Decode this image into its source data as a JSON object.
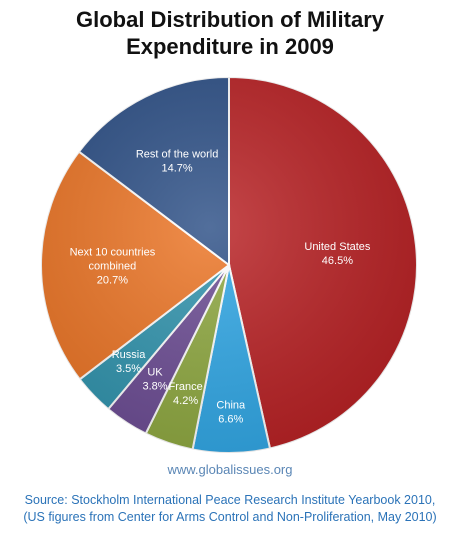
{
  "chart_data": {
    "type": "pie",
    "title_line1": "Global Distribution of Military",
    "title_line2": "Expenditure in 2009",
    "slices": [
      {
        "label": "United States",
        "value": 46.5,
        "value_text": "46.5%",
        "color": "#b81f22"
      },
      {
        "label": "China",
        "value": 6.6,
        "value_text": "6.6%",
        "color": "#2fa7e6"
      },
      {
        "label": "France",
        "value": 4.2,
        "value_text": "4.2%",
        "color": "#8ea83f"
      },
      {
        "label": "UK",
        "value": 3.8,
        "value_text": "3.8%",
        "color": "#6b4b93"
      },
      {
        "label": "Russia",
        "value": 3.5,
        "value_text": "3.5%",
        "color": "#2f93ad"
      },
      {
        "label": "Next 10 countries combined",
        "label_lines": [
          "Next 10 countries",
          "combined"
        ],
        "value": 20.7,
        "value_text": "20.7%",
        "color": "#ec7424"
      },
      {
        "label": "Rest of the world",
        "value": 14.7,
        "value_text": "14.7%",
        "color": "#2c4f86"
      }
    ]
  },
  "footer": {
    "website": "www.globalissues.org",
    "source_line1": "Source: Stockholm International Peace Research Institute Yearbook 2010,",
    "source_line2": "(US figures from Center for Arms Control and Non-Proliferation, May 2010)"
  }
}
